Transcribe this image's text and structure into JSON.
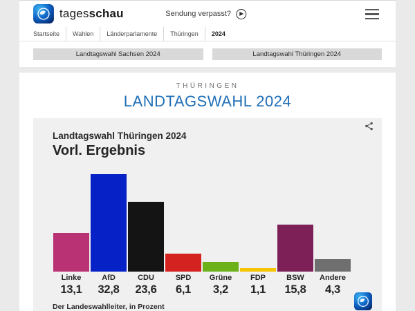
{
  "header": {
    "brand_regular": "tages",
    "brand_bold": "schau",
    "sendung_verpasst_label": "Sendung verpasst?",
    "breadcrumb": [
      "Startseite",
      "Wahlen",
      "Länderparlamente",
      "Thüringen",
      "2024"
    ],
    "nav_buttons": [
      "Landtagswahl Sachsen 2024",
      "Landtagswahl Thüringen 2024"
    ]
  },
  "page": {
    "kicker": "THÜRINGEN",
    "title": "LANDTAGSWAHL 2024"
  },
  "chart": {
    "title": "Landtagswahl Thüringen 2024",
    "subtitle": "Vorl. Ergebnis",
    "source": "Der Landeswahlleiter, in Prozent"
  },
  "chart_data": {
    "type": "bar",
    "title": "Landtagswahl Thüringen 2024",
    "subtitle": "Vorl. Ergebnis",
    "source": "Der Landeswahlleiter, in Prozent",
    "unit": "Prozent",
    "categories": [
      "Linke",
      "AfD",
      "CDU",
      "SPD",
      "Grüne",
      "FDP",
      "BSW",
      "Andere"
    ],
    "values": [
      13.1,
      32.8,
      23.6,
      6.1,
      3.2,
      1.1,
      15.8,
      4.3
    ],
    "value_labels": [
      "13,1",
      "32,8",
      "23,6",
      "6,1",
      "3,2",
      "1,1",
      "15,8",
      "4,3"
    ],
    "colors": [
      "#b93273",
      "#0621c6",
      "#141414",
      "#d42220",
      "#6cb11a",
      "#f7c500",
      "#7d2058",
      "#6f6f6f"
    ],
    "ylim": [
      0,
      35
    ],
    "grid": false,
    "legend": false
  },
  "colors": {
    "accent_blue": "#1f6fb7",
    "panel_bg": "#f0f0f0",
    "button_bg": "#d9d9d9"
  }
}
